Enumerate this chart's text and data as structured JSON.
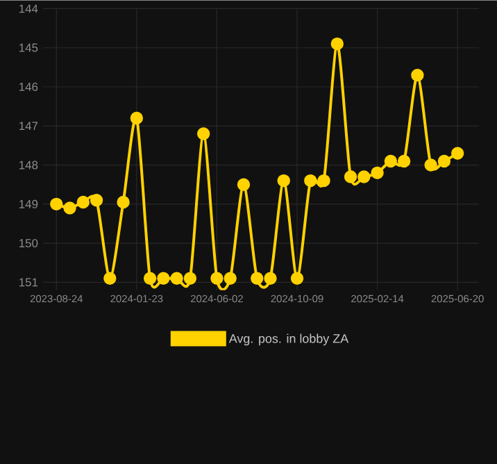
{
  "chart_data": {
    "type": "line",
    "categories": [
      "2023-08-24",
      null,
      null,
      null,
      null,
      null,
      "2024-01-23",
      null,
      null,
      null,
      null,
      null,
      "2024-06-02",
      null,
      null,
      null,
      null,
      null,
      "2024-10-09",
      null,
      null,
      null,
      null,
      null,
      "2025-02-14",
      null,
      null,
      null,
      null,
      null,
      "2025-06-20"
    ],
    "series": [
      {
        "name": "Avg. pos. in lobby ZA",
        "color": "#ffd200",
        "values": [
          149.0,
          149.1,
          148.95,
          148.9,
          150.9,
          148.95,
          146.8,
          150.9,
          150.9,
          150.9,
          150.9,
          147.2,
          150.9,
          150.9,
          148.5,
          150.9,
          150.9,
          148.4,
          150.9,
          148.4,
          148.4,
          144.9,
          148.3,
          148.3,
          148.2,
          147.9,
          147.9,
          145.7,
          148.0,
          147.9,
          147.7
        ]
      }
    ],
    "ylim": [
      151.2,
      144
    ],
    "yticks": [
      144,
      145,
      146,
      147,
      148,
      149,
      150,
      151
    ],
    "grid": true,
    "legend": "bottom",
    "marker": "circle",
    "line_style": "solid"
  }
}
